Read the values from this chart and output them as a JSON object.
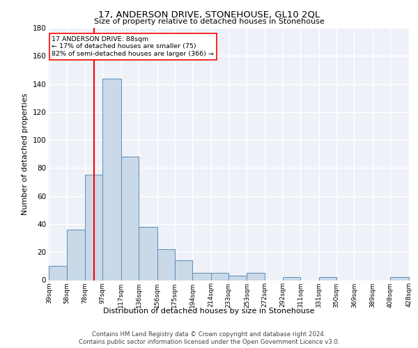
{
  "title": "17, ANDERSON DRIVE, STONEHOUSE, GL10 2QL",
  "subtitle": "Size of property relative to detached houses in Stonehouse",
  "xlabel": "Distribution of detached houses by size in Stonehouse",
  "ylabel": "Number of detached properties",
  "bar_color": "#c9d9e8",
  "bar_edge_color": "#5b8db8",
  "background_color": "#eef2f8",
  "grid_color": "#ffffff",
  "red_line_x": 88,
  "annotation_text": "17 ANDERSON DRIVE: 88sqm\n← 17% of detached houses are smaller (75)\n82% of semi-detached houses are larger (366) →",
  "footer1": "Contains HM Land Registry data © Crown copyright and database right 2024.",
  "footer2": "Contains public sector information licensed under the Open Government Licence v3.0.",
  "bin_edges": [
    39,
    58,
    78,
    97,
    117,
    136,
    156,
    175,
    194,
    214,
    233,
    253,
    272,
    292,
    311,
    331,
    350,
    369,
    389,
    408,
    428
  ],
  "counts": [
    10,
    36,
    75,
    144,
    88,
    38,
    22,
    14,
    5,
    5,
    3,
    5,
    0,
    2,
    0,
    2,
    0,
    0,
    0,
    2
  ],
  "tick_labels": [
    "39sqm",
    "58sqm",
    "78sqm",
    "97sqm",
    "117sqm",
    "136sqm",
    "156sqm",
    "175sqm",
    "194sqm",
    "214sqm",
    "233sqm",
    "253sqm",
    "272sqm",
    "292sqm",
    "311sqm",
    "331sqm",
    "350sqm",
    "369sqm",
    "389sqm",
    "408sqm",
    "428sqm"
  ],
  "ylim": [
    0,
    180
  ],
  "yticks": [
    0,
    20,
    40,
    60,
    80,
    100,
    120,
    140,
    160,
    180
  ]
}
